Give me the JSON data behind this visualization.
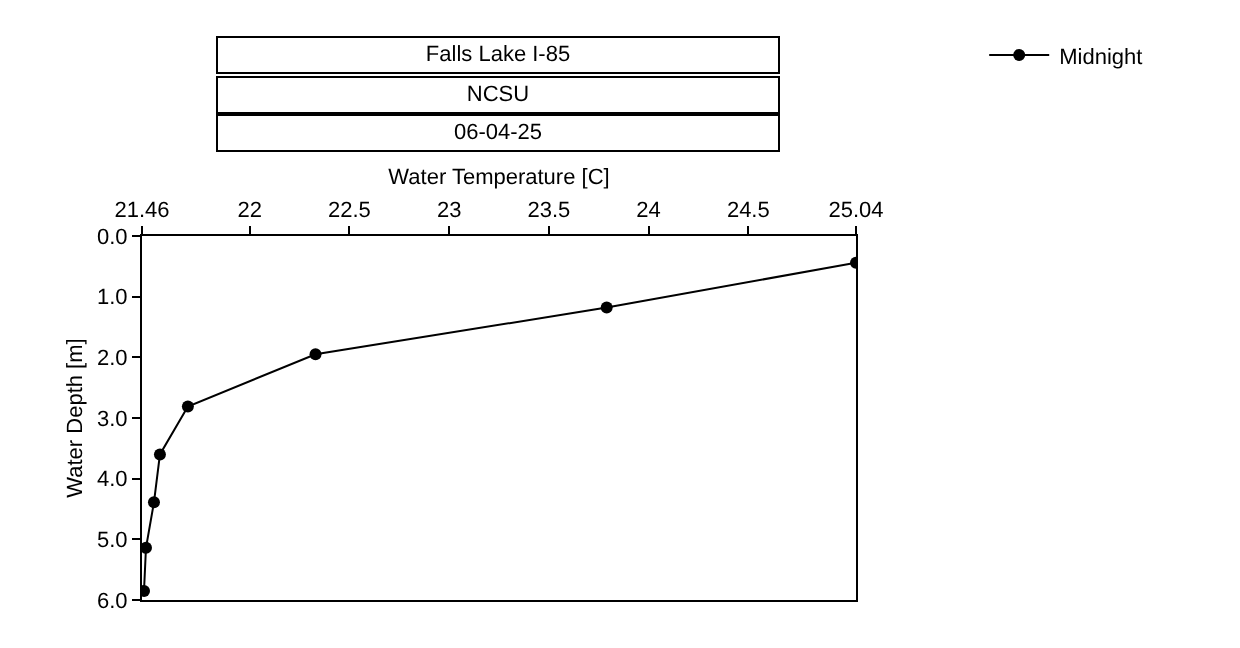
{
  "chart_data": {
    "type": "line",
    "title": "Falls Lake I-85",
    "subtitle": "NCSU",
    "annotations": [
      "06-04-25"
    ],
    "xlabel": "Water Temperature [C]",
    "ylabel": "Water Depth [m]",
    "series": [
      {
        "name": "Midnight",
        "color": "#000000",
        "x": [
          25.04,
          23.79,
          22.33,
          21.69,
          21.55,
          21.52,
          21.48,
          21.47
        ],
        "values": [
          0.44,
          1.18,
          1.95,
          2.81,
          3.6,
          4.39,
          5.14,
          5.85
        ]
      }
    ],
    "xlim": [
      21.46,
      25.04
    ],
    "xticks": [
      21.46,
      22,
      22.5,
      23,
      23.5,
      24,
      24.5,
      25.04
    ],
    "ylim": [
      6.0,
      0.0
    ],
    "yticks": [
      {
        "value": 0,
        "label": "0.0"
      },
      {
        "value": 1,
        "label": "1.0"
      },
      {
        "value": 2,
        "label": "2.0"
      },
      {
        "value": 3,
        "label": "3.0"
      },
      {
        "value": 4,
        "label": "4.0"
      },
      {
        "value": 5,
        "label": "5.0"
      },
      {
        "value": 6,
        "label": "6.0"
      }
    ],
    "legend": "top right",
    "marker": "circle",
    "line_style": "solid"
  }
}
